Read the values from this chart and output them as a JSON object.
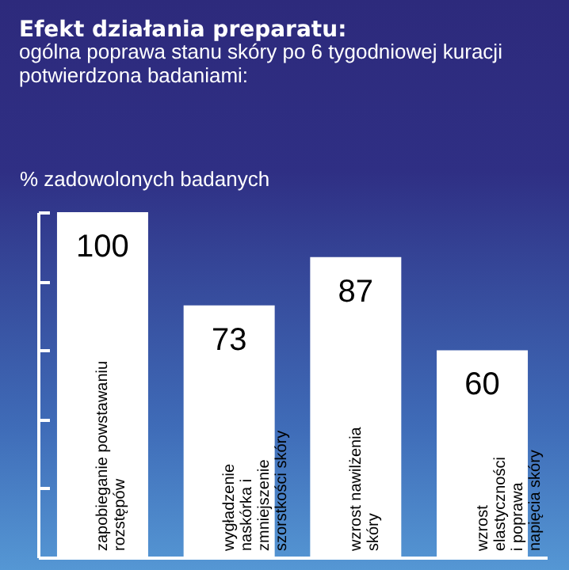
{
  "chart_data": {
    "type": "bar",
    "title": "Efekt działania preparatu:",
    "subtitle": "ogólna poprawa stanu skóry po 6 tygodniowej kuracji potwierdzona badaniami:",
    "ylabel": "% zadowolonych badanych",
    "categories": [
      "zapobieganie powstawaniu rozstępów",
      "wygładzenie naskórka i zmniejszenie szorstkości skóry",
      "wzrost nawilżenia skóry",
      "wzrost elastyczności i poprawa napięcia skóry"
    ],
    "values": [
      100,
      73,
      87,
      60
    ],
    "color": "#ffffff",
    "data_labels": true,
    "ylim": [
      0,
      100
    ],
    "yticks": [
      {
        "value": 20,
        "label": null
      },
      {
        "value": 40,
        "label": null
      },
      {
        "value": 60,
        "label": null
      },
      {
        "value": 80,
        "label": null
      },
      {
        "value": 100,
        "label": null
      }
    ]
  }
}
